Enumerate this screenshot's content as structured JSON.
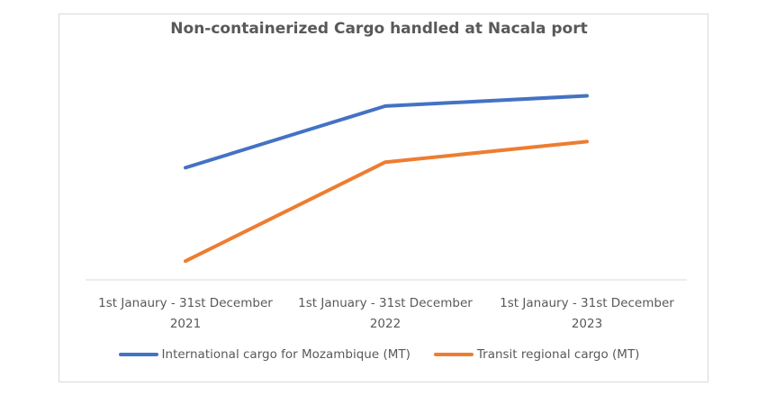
{
  "chart_data": {
    "type": "line",
    "title": "Non-containerized Cargo handled at Nacala port",
    "categories": [
      [
        "1st Janaury - 31st December",
        "2021"
      ],
      [
        "1st January - 31st December",
        "2022"
      ],
      [
        "1st Janaury - 31st December",
        "2023"
      ]
    ],
    "series": [
      {
        "name": "International cargo for Mozambique (MT)",
        "color": "#4472C4",
        "values": [
          60,
          93,
          98.5
        ]
      },
      {
        "name": "Transit regional cargo (MT)",
        "color": "#ED7D31",
        "values": [
          10,
          63,
          74
        ]
      }
    ],
    "ylim": [
      0,
      105
    ],
    "xlabel": "",
    "ylabel": "",
    "grid": false,
    "y_axis_labels_visible": false,
    "legend": "bottom"
  }
}
